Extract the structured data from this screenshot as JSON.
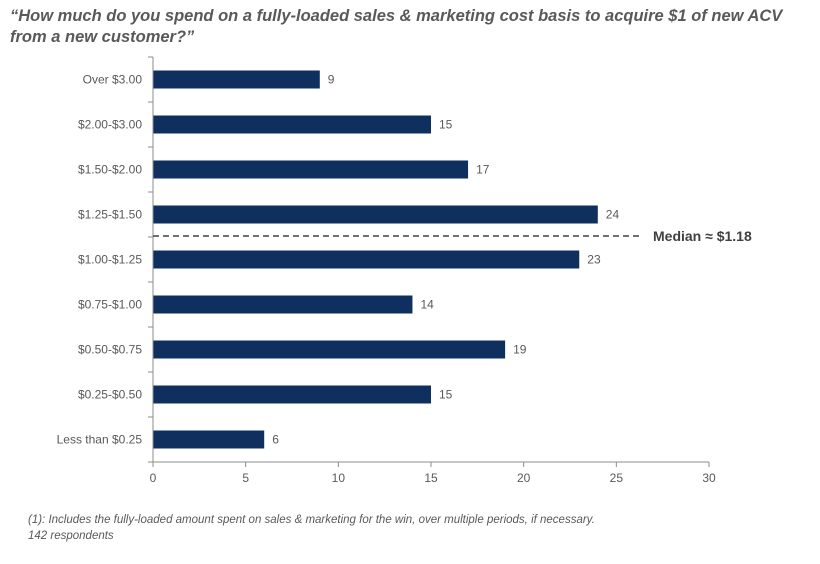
{
  "chart_data": {
    "type": "bar",
    "orientation": "horizontal",
    "title": "“How much do you spend on a fully-loaded sales & marketing cost basis to acquire $1 of new ACV from a new customer?”",
    "categories": [
      "Over $3.00",
      "$2.00-$3.00",
      "$1.50-$2.00",
      "$1.25-$1.50",
      "$1.00-$1.25",
      "$0.75-$1.00",
      "$0.50-$0.75",
      "$0.25-$0.50",
      "Less than $0.25"
    ],
    "values": [
      9,
      15,
      17,
      24,
      23,
      14,
      19,
      15,
      6
    ],
    "value_labels": [
      "9",
      "15",
      "17",
      "24",
      "23",
      "14",
      "19",
      "15",
      "6"
    ],
    "xlim": [
      0,
      30
    ],
    "x_ticks": [
      0,
      5,
      10,
      15,
      20,
      25,
      30
    ],
    "x_tick_labels": [
      "0",
      "5",
      "10",
      "15",
      "20",
      "25",
      "30"
    ],
    "grid": false,
    "bar_color": "#0f2f5e",
    "annotation": {
      "text": "Median ≈ $1.18",
      "between_categories": [
        "$1.25-$1.50",
        "$1.00-$1.25"
      ],
      "style": "dashed"
    }
  },
  "footnote": {
    "line1": "(1): Includes the fully-loaded amount spent on sales & marketing for the win, over multiple periods, if necessary.",
    "line2": "142 respondents"
  }
}
